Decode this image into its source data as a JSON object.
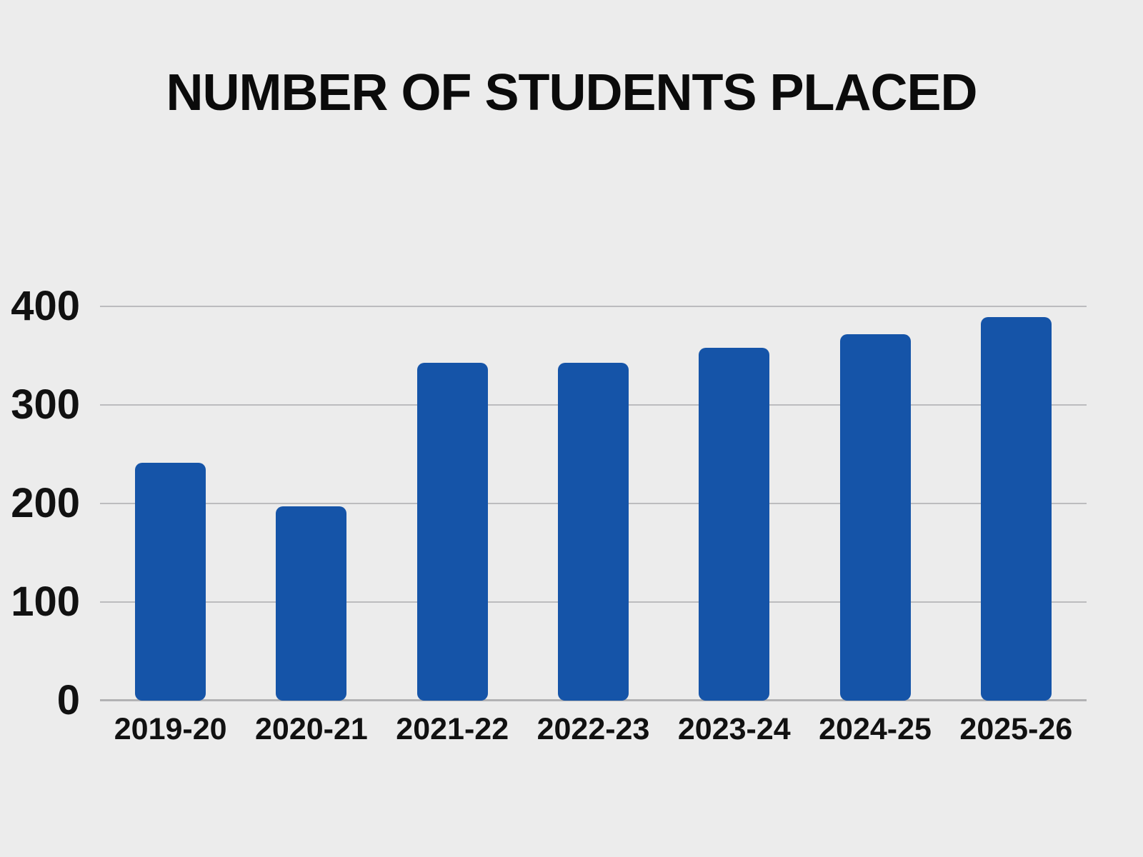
{
  "page": {
    "background_color": "#ececec"
  },
  "chart_data": {
    "type": "bar",
    "title": "NUMBER OF STUDENTS PLACED",
    "categories": [
      "2019-20",
      "2020-21",
      "2021-22",
      "2022-23",
      "2023-24",
      "2024-25",
      "2025-26"
    ],
    "values": [
      241,
      197,
      343,
      343,
      358,
      372,
      389
    ],
    "xlabel": "",
    "ylabel": "",
    "ylim": [
      0,
      400
    ],
    "yticks": [
      0,
      100,
      200,
      300,
      400
    ],
    "grid": "horizontal-only",
    "legend_position": "none",
    "bar_color": "#1554a8",
    "title_color": "#0b0b0b",
    "tick_label_color": "#111111",
    "gridline_color": "#bcbcbe",
    "axis_line_color": "#b2b2b4"
  }
}
